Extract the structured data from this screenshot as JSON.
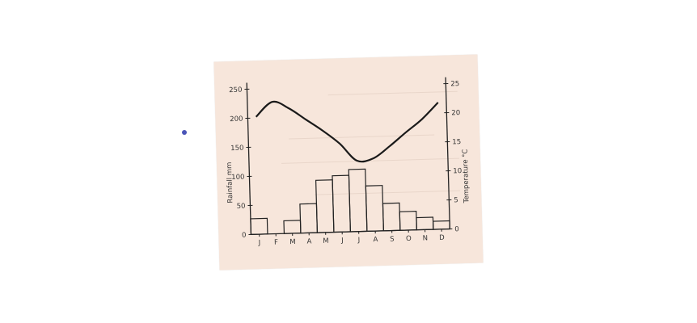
{
  "marker_color": "#4a55b8",
  "paper_color": "#f7e6db",
  "chart_data": {
    "type": "bar+line",
    "categories": [
      "J",
      "F",
      "M",
      "A",
      "M",
      "J",
      "J",
      "A",
      "S",
      "O",
      "N",
      "D"
    ],
    "rainfall_mm": [
      27,
      0,
      22,
      50,
      90,
      97,
      107,
      78,
      47,
      32,
      21,
      14
    ],
    "temperature_c": [
      20.2,
      22.7,
      21.5,
      19.5,
      17.5,
      15.2,
      12.2,
      12.5,
      14.5,
      16.8,
      19.0,
      21.8
    ],
    "left_axis": {
      "label": "Rainfall mm",
      "ylim": [
        0,
        250
      ],
      "ticks": [
        "0",
        "50",
        "100",
        "150",
        "200",
        "250"
      ]
    },
    "right_axis": {
      "label": "Temperature °C",
      "ylim": [
        0,
        25
      ],
      "ticks": [
        "0",
        "5",
        "10",
        "15",
        "20",
        "25"
      ]
    },
    "grid": false,
    "legend": "none"
  }
}
